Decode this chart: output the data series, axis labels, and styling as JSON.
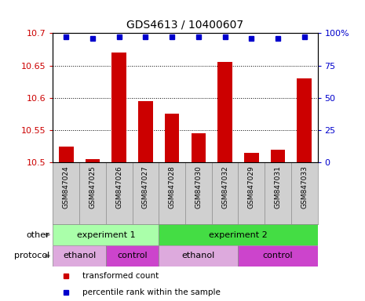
{
  "title": "GDS4613 / 10400607",
  "samples": [
    "GSM847024",
    "GSM847025",
    "GSM847026",
    "GSM847027",
    "GSM847028",
    "GSM847030",
    "GSM847032",
    "GSM847029",
    "GSM847031",
    "GSM847033"
  ],
  "bar_values": [
    10.525,
    10.505,
    10.67,
    10.595,
    10.575,
    10.545,
    10.655,
    10.515,
    10.52,
    10.63
  ],
  "percentile_values": [
    97,
    96,
    97,
    97,
    97,
    97,
    97,
    96,
    96,
    97
  ],
  "ylim": [
    10.5,
    10.7
  ],
  "yticks": [
    10.5,
    10.55,
    10.6,
    10.65,
    10.7
  ],
  "right_yticks": [
    0,
    25,
    50,
    75,
    100
  ],
  "right_ylim": [
    0,
    100
  ],
  "bar_color": "#cc0000",
  "dot_color": "#0000cc",
  "background_color": "#ffffff",
  "sample_box_color": "#d0d0d0",
  "annotation_row1": [
    {
      "label": "experiment 1",
      "start": 0,
      "end": 4,
      "color": "#aaffaa"
    },
    {
      "label": "experiment 2",
      "start": 4,
      "end": 10,
      "color": "#44dd44"
    }
  ],
  "annotation_row2": [
    {
      "label": "ethanol",
      "start": 0,
      "end": 2,
      "color": "#ddaadd"
    },
    {
      "label": "control",
      "start": 2,
      "end": 4,
      "color": "#cc44cc"
    },
    {
      "label": "ethanol",
      "start": 4,
      "end": 7,
      "color": "#ddaadd"
    },
    {
      "label": "control",
      "start": 7,
      "end": 10,
      "color": "#cc44cc"
    }
  ],
  "row1_label": "other",
  "row2_label": "protocol",
  "legend_items": [
    {
      "label": "transformed count",
      "color": "#cc0000",
      "marker": "s"
    },
    {
      "label": "percentile rank within the sample",
      "color": "#0000cc",
      "marker": "s"
    }
  ]
}
